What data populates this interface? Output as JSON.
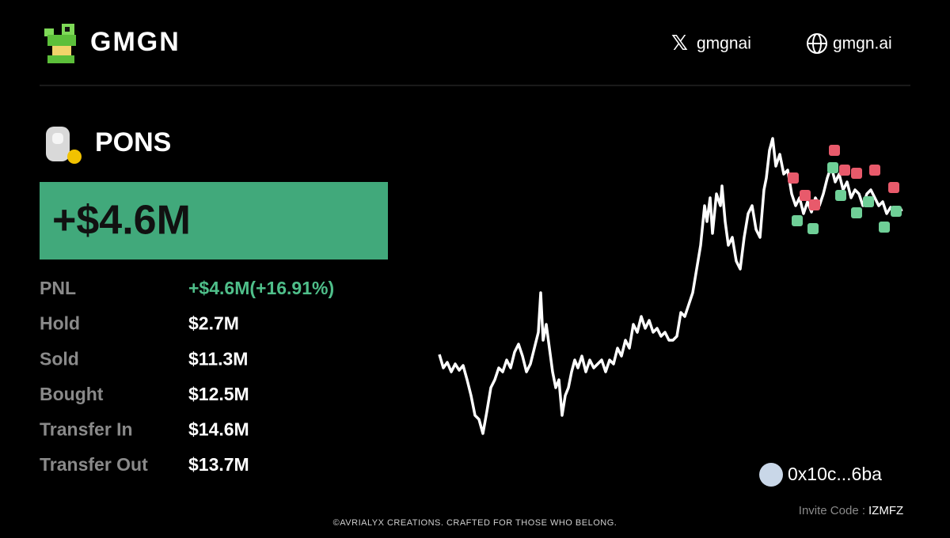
{
  "header": {
    "brand": "GMGN",
    "x_handle": "gmgnai",
    "website": "gmgn.ai"
  },
  "token": {
    "name": "PONS",
    "headline": "+$4.6M"
  },
  "stats": [
    {
      "label": "PNL",
      "value": "+$4.6M(+16.91%)"
    },
    {
      "label": "Hold",
      "value": "$2.7M"
    },
    {
      "label": "Sold",
      "value": "$11.3M"
    },
    {
      "label": "Bought",
      "value": "$12.5M"
    },
    {
      "label": "Transfer In",
      "value": "$14.6M"
    },
    {
      "label": "Transfer Out",
      "value": "$13.7M"
    }
  ],
  "wallet": "0x10c...6ba",
  "invite": {
    "label": "Invite Code :",
    "code": "IZMFZ"
  },
  "footer": "©AVRIALYX CREATIONS. CRAFTED FOR THOSE WHO BELONG."
}
